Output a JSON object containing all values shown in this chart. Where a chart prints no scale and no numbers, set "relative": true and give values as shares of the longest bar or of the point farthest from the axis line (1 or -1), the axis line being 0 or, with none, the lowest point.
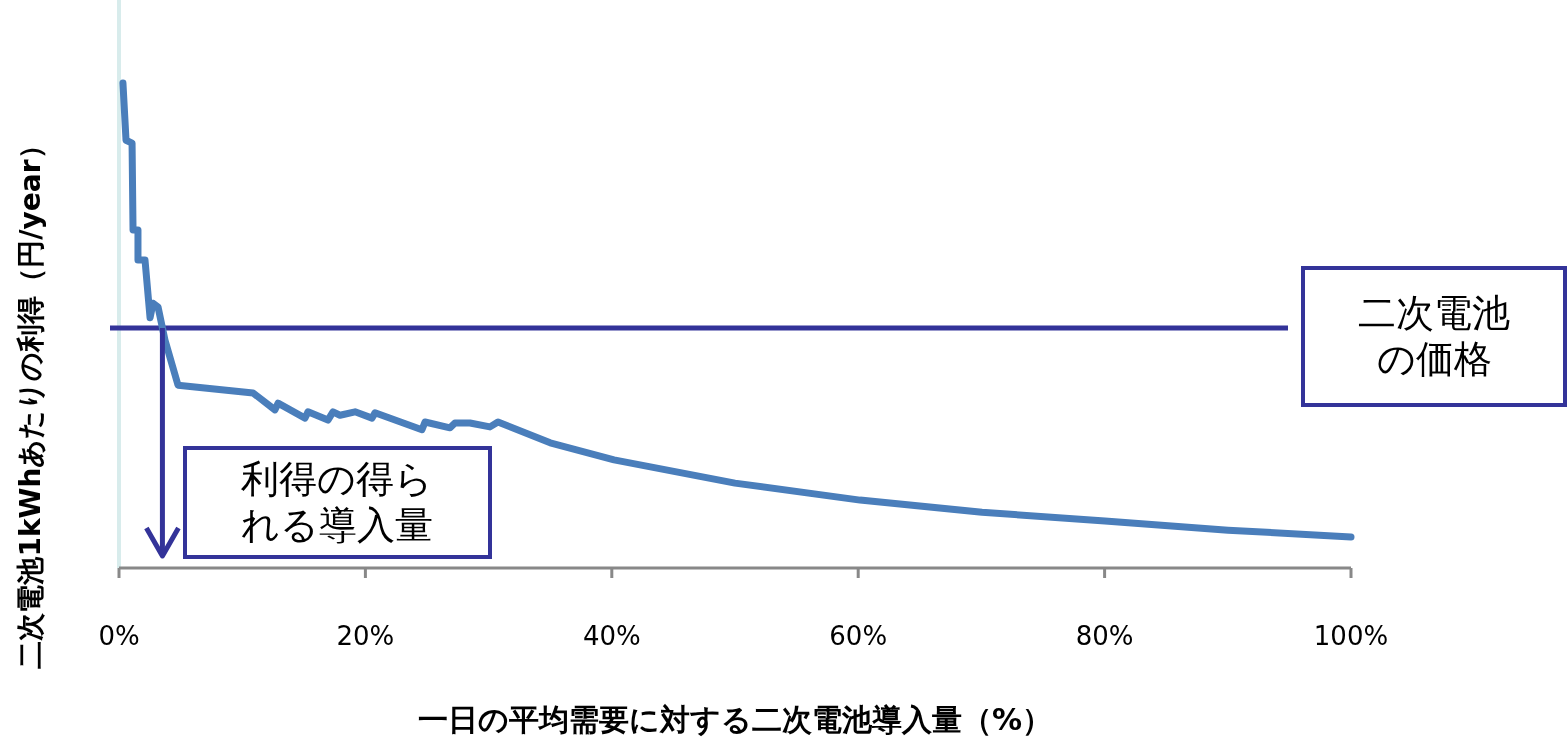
{
  "chart_data": {
    "type": "line",
    "relative": true,
    "xlabel": "一日の平均需要に対する二次電池導入量（%）",
    "ylabel": "二次電池1kWhあたりの利得（円/year）",
    "xlim": [
      0,
      100
    ],
    "xticks": [
      {
        "value": 0,
        "label": "0%"
      },
      {
        "value": 20,
        "label": "20%"
      },
      {
        "value": 40,
        "label": "40%"
      },
      {
        "value": 60,
        "label": "60%"
      },
      {
        "value": 80,
        "label": "80%"
      },
      {
        "value": 100,
        "label": "100%"
      }
    ],
    "series": [
      {
        "color": "#4a7ebb",
        "x": [
          0.32,
          0.57,
          1.06,
          1.14,
          1.54,
          1.54,
          2.11,
          2.52,
          2.76,
          3.17,
          3.73,
          4.79,
          10.88,
          12.66,
          12.91,
          15.1,
          15.34,
          16.96,
          17.37,
          17.94,
          19.16,
          20.54,
          20.78,
          24.59,
          24.84,
          26.87,
          27.27,
          28.49,
          30.11,
          30.76,
          35,
          40.18,
          50,
          60.15,
          70.05,
          80.03,
          90.02,
          100
        ],
        "values": [
          1.0,
          0.882,
          0.876,
          0.697,
          0.697,
          0.635,
          0.635,
          0.516,
          0.546,
          0.538,
          0.47,
          0.377,
          0.361,
          0.326,
          0.34,
          0.309,
          0.322,
          0.305,
          0.322,
          0.315,
          0.322,
          0.309,
          0.32,
          0.285,
          0.301,
          0.289,
          0.299,
          0.299,
          0.291,
          0.301,
          0.258,
          0.223,
          0.175,
          0.14,
          0.115,
          0.097,
          0.078,
          0.064
        ]
      }
    ],
    "ref_lines": [
      {
        "axis": "y",
        "value": 0.495,
        "label": "二次電池の価格",
        "color": "#333399"
      }
    ],
    "annotations": [
      "利得の得られる導入量"
    ]
  }
}
